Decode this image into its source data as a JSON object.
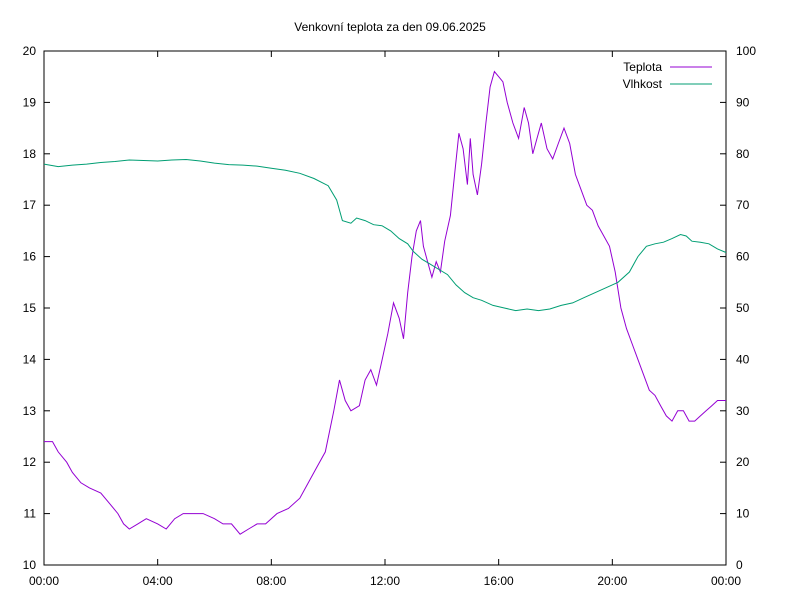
{
  "chart_data": {
    "type": "line",
    "title": "Venkovní teplota za den 09.06.2025",
    "x_ticks": [
      "00:00",
      "04:00",
      "08:00",
      "12:00",
      "16:00",
      "20:00",
      "00:00"
    ],
    "x_range_hours": [
      0,
      24
    ],
    "y_left": {
      "range": [
        10,
        20
      ],
      "ticks": [
        "10",
        "11",
        "12",
        "13",
        "14",
        "15",
        "16",
        "17",
        "18",
        "19",
        "20"
      ]
    },
    "y_right": {
      "range": [
        0,
        100
      ],
      "ticks": [
        "0",
        "10",
        "20",
        "30",
        "40",
        "50",
        "60",
        "70",
        "80",
        "90",
        "100"
      ]
    },
    "legend_position": "top-right",
    "grid": false,
    "series": [
      {
        "name": "Teplota",
        "axis": "left",
        "color": "#9400d3",
        "points": [
          [
            0,
            12.4
          ],
          [
            0.3,
            12.4
          ],
          [
            0.5,
            12.2
          ],
          [
            0.8,
            12.0
          ],
          [
            1.0,
            11.8
          ],
          [
            1.3,
            11.6
          ],
          [
            1.6,
            11.5
          ],
          [
            2.0,
            11.4
          ],
          [
            2.3,
            11.2
          ],
          [
            2.6,
            11.0
          ],
          [
            2.8,
            10.8
          ],
          [
            3.0,
            10.7
          ],
          [
            3.3,
            10.8
          ],
          [
            3.6,
            10.9
          ],
          [
            4.0,
            10.8
          ],
          [
            4.3,
            10.7
          ],
          [
            4.6,
            10.9
          ],
          [
            4.9,
            11.0
          ],
          [
            5.3,
            11.0
          ],
          [
            5.6,
            11.0
          ],
          [
            6.0,
            10.9
          ],
          [
            6.3,
            10.8
          ],
          [
            6.6,
            10.8
          ],
          [
            6.9,
            10.6
          ],
          [
            7.2,
            10.7
          ],
          [
            7.5,
            10.8
          ],
          [
            7.8,
            10.8
          ],
          [
            8.2,
            11.0
          ],
          [
            8.6,
            11.1
          ],
          [
            9.0,
            11.3
          ],
          [
            9.3,
            11.6
          ],
          [
            9.6,
            11.9
          ],
          [
            9.9,
            12.2
          ],
          [
            10.2,
            13.0
          ],
          [
            10.4,
            13.6
          ],
          [
            10.6,
            13.2
          ],
          [
            10.8,
            13.0
          ],
          [
            11.1,
            13.1
          ],
          [
            11.3,
            13.6
          ],
          [
            11.5,
            13.8
          ],
          [
            11.7,
            13.5
          ],
          [
            11.9,
            14.0
          ],
          [
            12.1,
            14.5
          ],
          [
            12.3,
            15.1
          ],
          [
            12.5,
            14.8
          ],
          [
            12.65,
            14.4
          ],
          [
            12.8,
            15.3
          ],
          [
            12.95,
            16.0
          ],
          [
            13.1,
            16.5
          ],
          [
            13.25,
            16.7
          ],
          [
            13.35,
            16.2
          ],
          [
            13.5,
            15.9
          ],
          [
            13.65,
            15.6
          ],
          [
            13.8,
            15.9
          ],
          [
            13.95,
            15.7
          ],
          [
            14.1,
            16.3
          ],
          [
            14.3,
            16.8
          ],
          [
            14.45,
            17.6
          ],
          [
            14.6,
            18.4
          ],
          [
            14.75,
            18.1
          ],
          [
            14.9,
            17.4
          ],
          [
            15.0,
            18.3
          ],
          [
            15.1,
            17.6
          ],
          [
            15.25,
            17.2
          ],
          [
            15.4,
            17.8
          ],
          [
            15.55,
            18.6
          ],
          [
            15.7,
            19.3
          ],
          [
            15.85,
            19.6
          ],
          [
            16.0,
            19.5
          ],
          [
            16.15,
            19.4
          ],
          [
            16.3,
            19.0
          ],
          [
            16.5,
            18.6
          ],
          [
            16.7,
            18.3
          ],
          [
            16.9,
            18.9
          ],
          [
            17.05,
            18.6
          ],
          [
            17.2,
            18.0
          ],
          [
            17.35,
            18.3
          ],
          [
            17.5,
            18.6
          ],
          [
            17.7,
            18.1
          ],
          [
            17.9,
            17.9
          ],
          [
            18.1,
            18.2
          ],
          [
            18.3,
            18.5
          ],
          [
            18.5,
            18.2
          ],
          [
            18.7,
            17.6
          ],
          [
            18.9,
            17.3
          ],
          [
            19.1,
            17.0
          ],
          [
            19.3,
            16.9
          ],
          [
            19.5,
            16.6
          ],
          [
            19.7,
            16.4
          ],
          [
            19.9,
            16.2
          ],
          [
            20.1,
            15.7
          ],
          [
            20.3,
            15.0
          ],
          [
            20.5,
            14.6
          ],
          [
            20.7,
            14.3
          ],
          [
            20.9,
            14.0
          ],
          [
            21.1,
            13.7
          ],
          [
            21.3,
            13.4
          ],
          [
            21.5,
            13.3
          ],
          [
            21.7,
            13.1
          ],
          [
            21.9,
            12.9
          ],
          [
            22.1,
            12.8
          ],
          [
            22.3,
            13.0
          ],
          [
            22.5,
            13.0
          ],
          [
            22.7,
            12.8
          ],
          [
            22.9,
            12.8
          ],
          [
            23.1,
            12.9
          ],
          [
            23.3,
            13.0
          ],
          [
            23.5,
            13.1
          ],
          [
            23.7,
            13.2
          ],
          [
            24.0,
            13.2
          ]
        ]
      },
      {
        "name": "Vlhkost",
        "axis": "right",
        "color": "#009e73",
        "points": [
          [
            0,
            78
          ],
          [
            0.5,
            77.5
          ],
          [
            1.0,
            77.8
          ],
          [
            1.5,
            78
          ],
          [
            2.0,
            78.3
          ],
          [
            2.5,
            78.5
          ],
          [
            3.0,
            78.8
          ],
          [
            3.5,
            78.7
          ],
          [
            4.0,
            78.6
          ],
          [
            4.5,
            78.8
          ],
          [
            5.0,
            78.9
          ],
          [
            5.5,
            78.6
          ],
          [
            6.0,
            78.2
          ],
          [
            6.5,
            77.9
          ],
          [
            7.0,
            77.8
          ],
          [
            7.5,
            77.6
          ],
          [
            8.0,
            77.2
          ],
          [
            8.5,
            76.8
          ],
          [
            9.0,
            76.2
          ],
          [
            9.5,
            75.2
          ],
          [
            10.0,
            73.8
          ],
          [
            10.3,
            71.0
          ],
          [
            10.5,
            67.0
          ],
          [
            10.8,
            66.5
          ],
          [
            11.0,
            67.5
          ],
          [
            11.3,
            67.0
          ],
          [
            11.6,
            66.2
          ],
          [
            11.9,
            66.0
          ],
          [
            12.2,
            65.0
          ],
          [
            12.5,
            63.5
          ],
          [
            12.8,
            62.5
          ],
          [
            13.0,
            61.0
          ],
          [
            13.3,
            59.5
          ],
          [
            13.6,
            58.5
          ],
          [
            13.9,
            57.5
          ],
          [
            14.2,
            56.5
          ],
          [
            14.5,
            54.5
          ],
          [
            14.8,
            53.0
          ],
          [
            15.1,
            52.0
          ],
          [
            15.4,
            51.5
          ],
          [
            15.8,
            50.5
          ],
          [
            16.2,
            50.0
          ],
          [
            16.6,
            49.5
          ],
          [
            17.0,
            49.8
          ],
          [
            17.4,
            49.5
          ],
          [
            17.8,
            49.8
          ],
          [
            18.2,
            50.5
          ],
          [
            18.6,
            51.0
          ],
          [
            19.0,
            52.0
          ],
          [
            19.4,
            53.0
          ],
          [
            19.8,
            54.0
          ],
          [
            20.2,
            55.0
          ],
          [
            20.6,
            57.0
          ],
          [
            20.9,
            60.0
          ],
          [
            21.2,
            62.0
          ],
          [
            21.5,
            62.5
          ],
          [
            21.8,
            62.8
          ],
          [
            22.1,
            63.5
          ],
          [
            22.4,
            64.3
          ],
          [
            22.6,
            64.0
          ],
          [
            22.8,
            63.0
          ],
          [
            23.1,
            62.8
          ],
          [
            23.4,
            62.5
          ],
          [
            23.7,
            61.5
          ],
          [
            24.0,
            60.8
          ]
        ]
      }
    ]
  }
}
